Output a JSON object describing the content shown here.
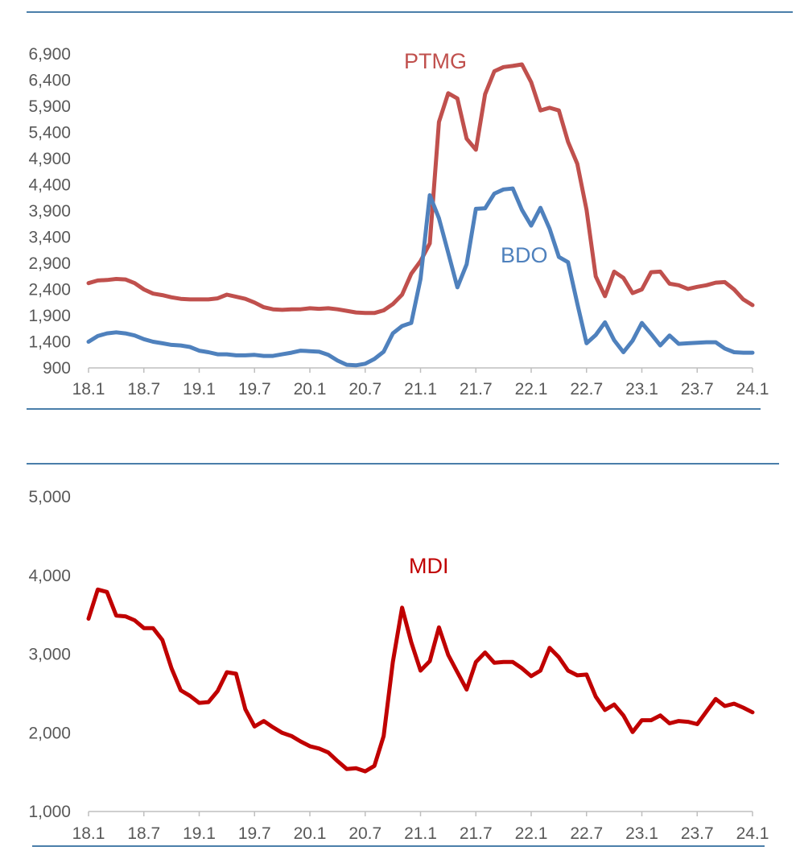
{
  "chart_data": [
    {
      "type": "line",
      "title": "",
      "xlabel": "",
      "ylabel": "",
      "ylim": [
        900,
        6900
      ],
      "y_ticks": [
        "6,900",
        "6,400",
        "5,900",
        "5,400",
        "4,900",
        "4,400",
        "3,900",
        "3,400",
        "2,900",
        "2,400",
        "1,900",
        "1,400",
        "900"
      ],
      "y_tick_values": [
        6900,
        6400,
        5900,
        5400,
        4900,
        4400,
        3900,
        3400,
        2900,
        2400,
        1900,
        1400,
        900
      ],
      "x_ticks": [
        "18.1",
        "18.7",
        "19.1",
        "19.7",
        "20.1",
        "20.7",
        "21.1",
        "21.7",
        "22.1",
        "22.7",
        "23.1",
        "23.7",
        "24.1"
      ],
      "grid": false,
      "legend": "none (inline labels)",
      "series": [
        {
          "name": "PTMG",
          "color": "#c0504d",
          "values": [
            2520,
            2570,
            2580,
            2600,
            2590,
            2520,
            2400,
            2320,
            2290,
            2250,
            2220,
            2210,
            2210,
            2210,
            2230,
            2300,
            2260,
            2220,
            2150,
            2060,
            2020,
            2010,
            2020,
            2020,
            2040,
            2030,
            2040,
            2020,
            1990,
            1960,
            1950,
            1950,
            2000,
            2120,
            2300,
            2700,
            2940,
            3280,
            5600,
            6150,
            6050,
            5280,
            5070,
            6130,
            6570,
            6650,
            6670,
            6700,
            6360,
            5820,
            5870,
            5820,
            5220,
            4800,
            3920,
            2650,
            2270,
            2740,
            2620,
            2330,
            2400,
            2730,
            2740,
            2510,
            2480,
            2410,
            2450,
            2480,
            2530,
            2540,
            2400,
            2210,
            2100
          ]
        },
        {
          "name": "BDO",
          "color": "#4f81bd",
          "values": [
            1400,
            1510,
            1560,
            1580,
            1560,
            1520,
            1450,
            1400,
            1370,
            1340,
            1330,
            1300,
            1230,
            1200,
            1160,
            1160,
            1140,
            1140,
            1150,
            1130,
            1130,
            1160,
            1190,
            1230,
            1220,
            1210,
            1150,
            1040,
            960,
            950,
            980,
            1070,
            1210,
            1560,
            1700,
            1760,
            2600,
            4200,
            3760,
            3100,
            2440,
            2880,
            3940,
            3950,
            4230,
            4310,
            4330,
            3920,
            3620,
            3960,
            3560,
            3020,
            2920,
            2130,
            1370,
            1530,
            1770,
            1430,
            1200,
            1420,
            1760,
            1550,
            1330,
            1520,
            1360,
            1370,
            1380,
            1390,
            1390,
            1270,
            1200,
            1190,
            1190
          ]
        }
      ]
    },
    {
      "type": "line",
      "title": "",
      "xlabel": "",
      "ylabel": "",
      "ylim": [
        1000,
        5000
      ],
      "y_ticks": [
        "5,000",
        "4,000",
        "3,000",
        "2,000",
        "1,000"
      ],
      "y_tick_values": [
        5000,
        4000,
        3000,
        2000,
        1000
      ],
      "x_ticks": [
        "18.1",
        "18.7",
        "19.1",
        "19.7",
        "20.1",
        "20.7",
        "21.1",
        "21.7",
        "22.1",
        "22.7",
        "23.1",
        "23.7",
        "24.1"
      ],
      "grid": false,
      "legend": "none (inline labels)",
      "series": [
        {
          "name": "MDI",
          "color": "#c00000",
          "values": [
            3450,
            3820,
            3790,
            3490,
            3480,
            3430,
            3330,
            3330,
            3180,
            2820,
            2540,
            2470,
            2380,
            2390,
            2530,
            2770,
            2750,
            2300,
            2080,
            2150,
            2070,
            2000,
            1960,
            1890,
            1830,
            1800,
            1750,
            1640,
            1540,
            1550,
            1510,
            1580,
            1960,
            2900,
            3590,
            3150,
            2790,
            2910,
            3340,
            2990,
            2770,
            2550,
            2900,
            3020,
            2890,
            2900,
            2900,
            2820,
            2720,
            2790,
            3080,
            2960,
            2790,
            2730,
            2740,
            2460,
            2290,
            2360,
            2220,
            2010,
            2160,
            2160,
            2220,
            2120,
            2150,
            2140,
            2110,
            2270,
            2430,
            2340,
            2370,
            2320,
            2260
          ]
        }
      ]
    }
  ]
}
